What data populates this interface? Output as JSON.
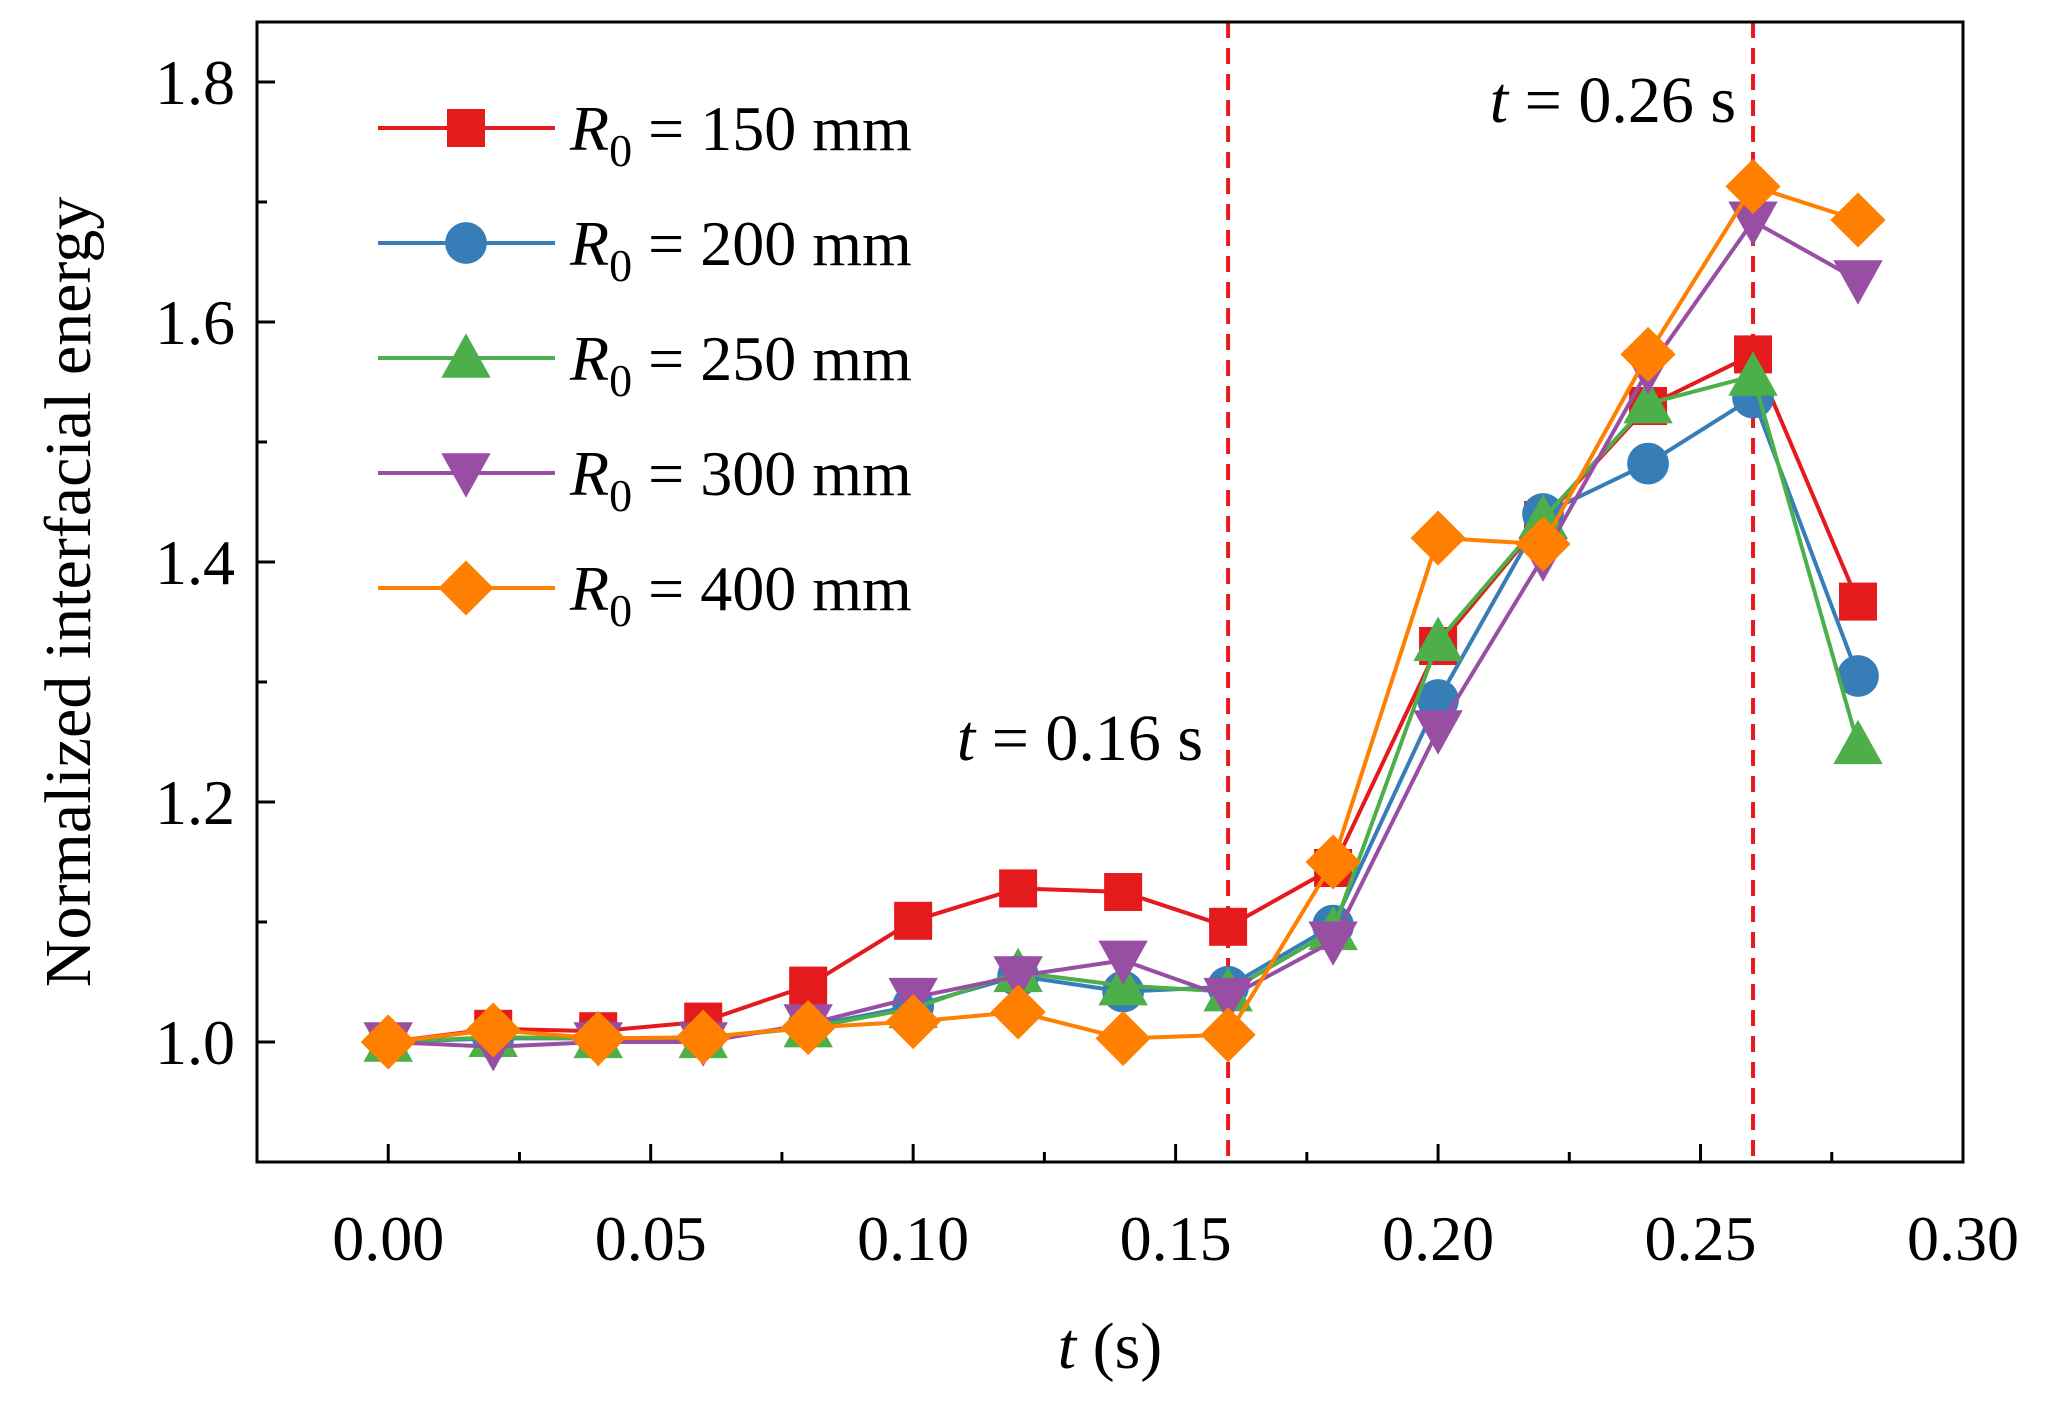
{
  "chart_data": {
    "type": "line",
    "title": "",
    "xlabel": {
      "var": "t",
      "unit": " (s)"
    },
    "ylabel": "Normalized interfacial energy",
    "xlim": [
      -0.025,
      0.3
    ],
    "ylim": [
      0.9,
      1.85
    ],
    "x_ticks": [
      "0.00",
      "0.05",
      "0.10",
      "0.15",
      "0.20",
      "0.25",
      "0.30"
    ],
    "y_ticks": [
      "1.0",
      "1.2",
      "1.4",
      "1.6",
      "1.8"
    ],
    "x": [
      0.0,
      0.02,
      0.04,
      0.06,
      0.08,
      0.1,
      0.12,
      0.14,
      0.16,
      0.18,
      0.2,
      0.22,
      0.24,
      0.26,
      0.28
    ],
    "series": [
      {
        "name": "R0 = 150 mm",
        "sym": "R",
        "sub": "0",
        "eq": " = 150 mm",
        "color": "#e41a1c",
        "marker": "square",
        "values": [
          1.0,
          1.011,
          1.009,
          1.017,
          1.047,
          1.101,
          1.128,
          1.125,
          1.096,
          1.145,
          1.33,
          1.435,
          1.53,
          1.573,
          1.367
        ]
      },
      {
        "name": "R0 = 200 mm",
        "sym": "R",
        "sub": "0",
        "eq": " = 200 mm",
        "color": "#377eb8",
        "marker": "circle",
        "values": [
          1.0,
          1.003,
          1.003,
          1.003,
          1.013,
          1.03,
          1.055,
          1.042,
          1.046,
          1.097,
          1.285,
          1.44,
          1.482,
          1.537,
          1.305
        ]
      },
      {
        "name": "R0 = 250 mm",
        "sym": "R",
        "sub": "0",
        "eq": " = 250 mm",
        "color": "#4daf4a",
        "marker": "triangle-up",
        "values": [
          1.0,
          1.004,
          1.003,
          1.003,
          1.012,
          1.028,
          1.058,
          1.047,
          1.042,
          1.093,
          1.334,
          1.436,
          1.532,
          1.555,
          1.248
        ]
      },
      {
        "name": "R0 = 300 mm",
        "sym": "R",
        "sub": "0",
        "eq": " = 300 mm",
        "color": "#984ea3",
        "marker": "triangle-down",
        "values": [
          1.0,
          0.996,
          1.0,
          1.0,
          1.015,
          1.037,
          1.055,
          1.068,
          1.037,
          1.084,
          1.26,
          1.404,
          1.56,
          1.684,
          1.635
        ]
      },
      {
        "name": "R0 = 400 mm",
        "sym": "R",
        "sub": "0",
        "eq": " = 400 mm",
        "color": "#ff7f00",
        "marker": "diamond",
        "values": [
          1.0,
          1.01,
          1.003,
          1.004,
          1.012,
          1.017,
          1.025,
          1.003,
          1.006,
          1.15,
          1.42,
          1.415,
          1.573,
          1.713,
          1.685
        ]
      }
    ],
    "vlines": [
      {
        "x": 0.16,
        "color": "#e41a1c",
        "label_var": "t",
        "label_rest": " = 0.16 s"
      },
      {
        "x": 0.26,
        "color": "#e41a1c",
        "label_var": "t",
        "label_rest": " = 0.26 s"
      }
    ],
    "legend_position": "top-left",
    "grid": false
  }
}
